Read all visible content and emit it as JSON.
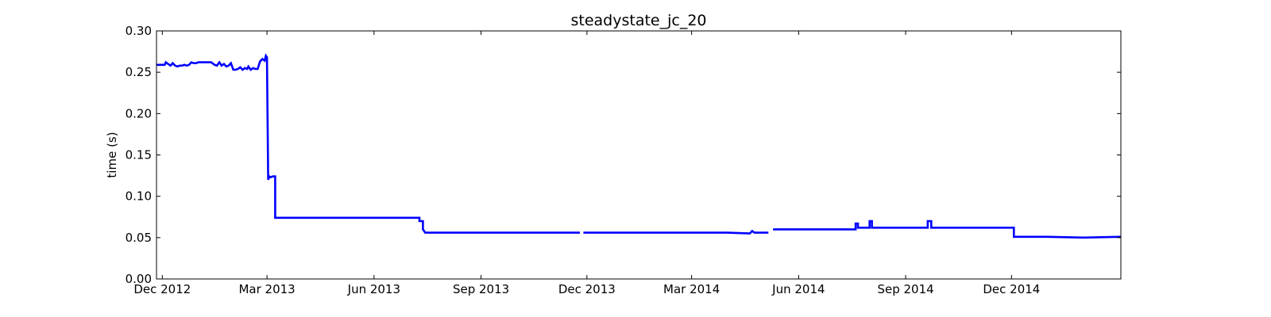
{
  "chart_data": {
    "type": "line",
    "title": "steadystate_jc_20",
    "xlabel": "",
    "ylabel": "time (s)",
    "ylim": [
      0.0,
      0.3
    ],
    "xlim": [
      "2012-11-26",
      "2015-03-05"
    ],
    "grid": false,
    "legend": "none",
    "color": "#0000ff",
    "x_ticks": [
      {
        "date": "2012-12-01",
        "label": "Dec 2012"
      },
      {
        "date": "2013-03-01",
        "label": "Mar 2013"
      },
      {
        "date": "2013-06-01",
        "label": "Jun 2013"
      },
      {
        "date": "2013-09-01",
        "label": "Sep 2013"
      },
      {
        "date": "2013-12-01",
        "label": "Dec 2013"
      },
      {
        "date": "2014-03-01",
        "label": "Mar 2014"
      },
      {
        "date": "2014-06-01",
        "label": "Jun 2014"
      },
      {
        "date": "2014-09-01",
        "label": "Sep 2014"
      },
      {
        "date": "2014-12-01",
        "label": "Dec 2014"
      }
    ],
    "y_ticks": [
      {
        "value": 0.0,
        "label": "0.00"
      },
      {
        "value": 0.05,
        "label": "0.05"
      },
      {
        "value": 0.1,
        "label": "0.10"
      },
      {
        "value": 0.15,
        "label": "0.15"
      },
      {
        "value": 0.2,
        "label": "0.20"
      },
      {
        "value": 0.25,
        "label": "0.25"
      },
      {
        "value": 0.3,
        "label": "0.30"
      }
    ],
    "series": [
      {
        "segments": [
          {
            "x": [
              "2012-11-26",
              "2012-12-03",
              "2012-12-04",
              "2012-12-06",
              "2012-12-08",
              "2012-12-10",
              "2012-12-12",
              "2012-12-14",
              "2012-12-16",
              "2012-12-18",
              "2012-12-20",
              "2012-12-22",
              "2012-12-24",
              "2012-12-26",
              "2012-12-28",
              "2012-12-30",
              "2013-01-01",
              "2013-01-03",
              "2013-01-05",
              "2013-01-07",
              "2013-01-10",
              "2013-01-12",
              "2013-01-15",
              "2013-01-17",
              "2013-01-19",
              "2013-01-21",
              "2013-01-23",
              "2013-01-25",
              "2013-01-27",
              "2013-01-29",
              "2013-01-31",
              "2013-02-02",
              "2013-02-04",
              "2013-02-06",
              "2013-02-08",
              "2013-02-10",
              "2013-02-12",
              "2013-02-13",
              "2013-02-15",
              "2013-02-17",
              "2013-02-19",
              "2013-02-21",
              "2013-02-23",
              "2013-02-25",
              "2013-02-27",
              "2013-02-28",
              "2013-03-01",
              "2013-03-01",
              "2013-03-02",
              "2013-03-03",
              "2013-03-04",
              "2013-03-06",
              "2013-03-08",
              "2013-03-08",
              "2013-03-10",
              "2013-03-20",
              "2013-04-01",
              "2013-04-15",
              "2013-05-01",
              "2013-05-15",
              "2013-06-01",
              "2013-06-15",
              "2013-07-01",
              "2013-07-10",
              "2013-07-10",
              "2013-07-13",
              "2013-07-13",
              "2013-07-15",
              "2013-08-01",
              "2013-09-01",
              "2013-10-01",
              "2013-11-01",
              "2013-11-25"
            ],
            "y": [
              0.259,
              0.259,
              0.262,
              0.26,
              0.258,
              0.261,
              0.258,
              0.257,
              0.258,
              0.258,
              0.259,
              0.258,
              0.259,
              0.262,
              0.261,
              0.261,
              0.262,
              0.262,
              0.262,
              0.262,
              0.262,
              0.262,
              0.259,
              0.258,
              0.262,
              0.258,
              0.26,
              0.257,
              0.258,
              0.261,
              0.253,
              0.253,
              0.254,
              0.256,
              0.253,
              0.255,
              0.254,
              0.257,
              0.253,
              0.255,
              0.254,
              0.254,
              0.263,
              0.266,
              0.264,
              0.27,
              0.268,
              0.265,
              0.12,
              0.124,
              0.123,
              0.124,
              0.124,
              0.074,
              0.074,
              0.074,
              0.074,
              0.074,
              0.074,
              0.074,
              0.074,
              0.074,
              0.074,
              0.074,
              0.07,
              0.07,
              0.06,
              0.056,
              0.056,
              0.056,
              0.056,
              0.056,
              0.056
            ]
          },
          {
            "x": [
              "2013-11-28",
              "2013-12-15",
              "2014-01-01",
              "2014-02-01",
              "2014-03-01",
              "2014-04-01",
              "2014-04-20",
              "2014-04-22",
              "2014-04-24",
              "2014-05-06"
            ],
            "y": [
              0.056,
              0.056,
              0.056,
              0.056,
              0.056,
              0.056,
              0.055,
              0.058,
              0.056,
              0.056
            ]
          },
          {
            "x": [
              "2014-05-10",
              "2014-06-01",
              "2014-07-01",
              "2014-07-20",
              "2014-07-20",
              "2014-07-22",
              "2014-07-22",
              "2014-08-01",
              "2014-08-01",
              "2014-08-03",
              "2014-08-03",
              "2014-09-01",
              "2014-09-20",
              "2014-09-20",
              "2014-09-23",
              "2014-09-23",
              "2014-10-01",
              "2014-11-01",
              "2014-12-03",
              "2014-12-03",
              "2014-12-15",
              "2015-01-01",
              "2015-02-01",
              "2015-03-05"
            ],
            "y": [
              0.06,
              0.06,
              0.06,
              0.06,
              0.067,
              0.067,
              0.062,
              0.062,
              0.07,
              0.07,
              0.062,
              0.062,
              0.062,
              0.07,
              0.07,
              0.062,
              0.062,
              0.062,
              0.062,
              0.051,
              0.051,
              0.051,
              0.05,
              0.051
            ]
          }
        ]
      }
    ]
  }
}
